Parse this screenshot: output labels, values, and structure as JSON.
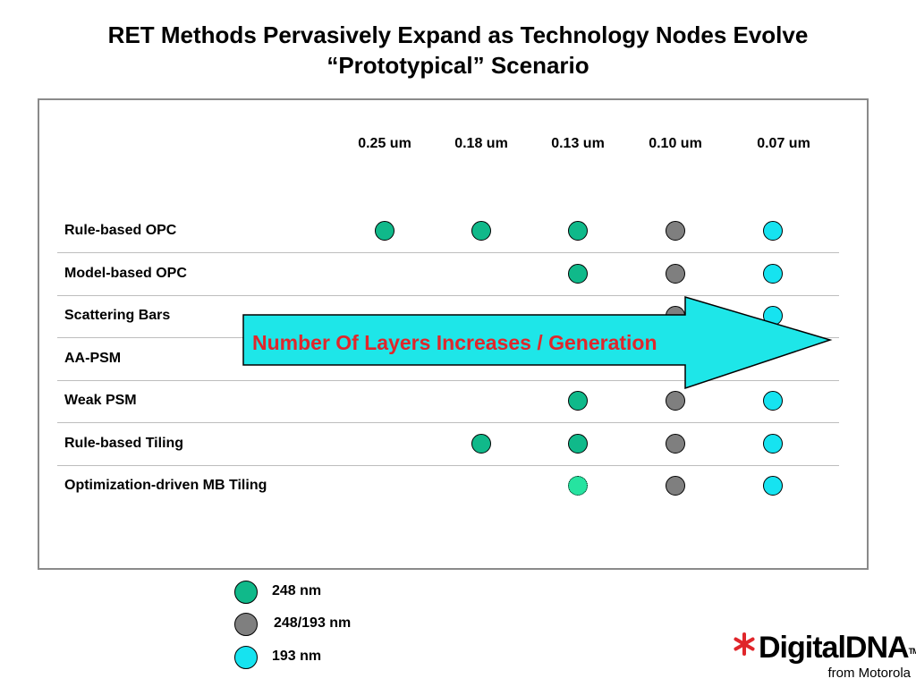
{
  "title": {
    "line1": "RET Methods Pervasively Expand as Technology Nodes Evolve",
    "line2": "“Prototypical” Scenario"
  },
  "columns": [
    "0.25 um",
    "0.18 um",
    "0.13 um",
    "0.10 um",
    "0.07  um"
  ],
  "rows": [
    {
      "label": "Rule-based OPC",
      "cells": [
        "248",
        "248",
        "248",
        "248/193",
        "193"
      ]
    },
    {
      "label": "Model-based OPC",
      "cells": [
        "",
        "",
        "248",
        "248/193",
        "193"
      ]
    },
    {
      "label": "Scattering Bars",
      "cells": [
        "",
        "",
        "",
        "248/193",
        "193"
      ]
    },
    {
      "label": "AA-PSM",
      "cells": [
        "",
        "",
        "",
        "",
        ""
      ]
    },
    {
      "label": "Weak PSM",
      "cells": [
        "",
        "",
        "248",
        "248/193",
        "193"
      ]
    },
    {
      "label": "Rule-based Tiling",
      "cells": [
        "",
        "248",
        "248",
        "248/193",
        "193"
      ]
    },
    {
      "label": "Optimization-driven MB Tiling",
      "cells": [
        "",
        "",
        "248-light",
        "248/193",
        "193"
      ]
    }
  ],
  "arrow": {
    "label": "Number Of Layers Increases / Generation"
  },
  "legend": [
    {
      "key": "248",
      "label": "248 nm"
    },
    {
      "key": "248/193",
      "label": "248/193  nm"
    },
    {
      "key": "193",
      "label": "193 nm"
    }
  ],
  "colors": {
    "248": "#10b98a",
    "248-light": "#26e3a0",
    "248/193": "#7f7f7f",
    "193": "#16e3f0",
    "arrow_fill": "#1ee6e8",
    "arrow_text": "#e0262b",
    "logo_star": "#e0262b"
  },
  "logo": {
    "main": "DigitalDNA",
    "tm": "TM",
    "sub": "from Motorola"
  }
}
